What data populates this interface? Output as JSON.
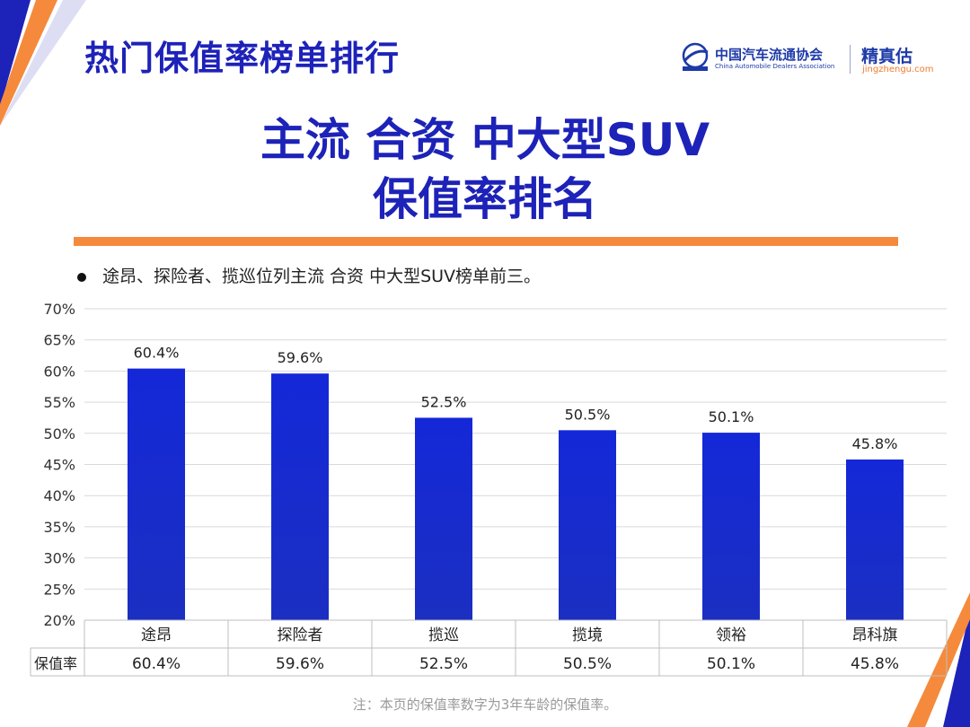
{
  "header": {
    "title": "热门保值率榜单排行",
    "logo_cn": "中国汽车流通协会",
    "logo_en": "China Automobile Dealers Association",
    "logo_brand": "精真估",
    "logo_url": "jingzhengu.com"
  },
  "main_title": {
    "line1": "主流 合资 中大型SUV",
    "line2": "保值率排名"
  },
  "bullet": "途昂、探险者、揽巡位列主流 合资 中大型SUV榜单前三。",
  "footnote": "注：本页的保值率数字为3年车龄的保值率。",
  "colors": {
    "title_blue": "#1d22b8",
    "bar_blue": "#1a28d0",
    "orange": "#f58a3c",
    "grid": "#d9d9d9"
  },
  "chart_data": {
    "type": "bar",
    "categories": [
      "途昂",
      "探险者",
      "揽巡",
      "揽境",
      "领裕",
      "昂科旗"
    ],
    "series": [
      {
        "name": "保值率",
        "values": [
          60.4,
          59.6,
          52.5,
          50.5,
          50.1,
          45.8
        ],
        "labels": [
          "60.4%",
          "59.6%",
          "52.5%",
          "50.5%",
          "50.1%",
          "45.8%"
        ]
      }
    ],
    "yticks": [
      "70%",
      "65%",
      "60%",
      "55%",
      "50%",
      "45%",
      "40%",
      "35%",
      "30%",
      "25%",
      "20%"
    ],
    "ylim": [
      20,
      70
    ],
    "grid": true,
    "data_table": {
      "row_header": "保值率",
      "cells": [
        "60.4%",
        "59.6%",
        "52.5%",
        "50.5%",
        "50.1%",
        "45.8%"
      ]
    }
  }
}
